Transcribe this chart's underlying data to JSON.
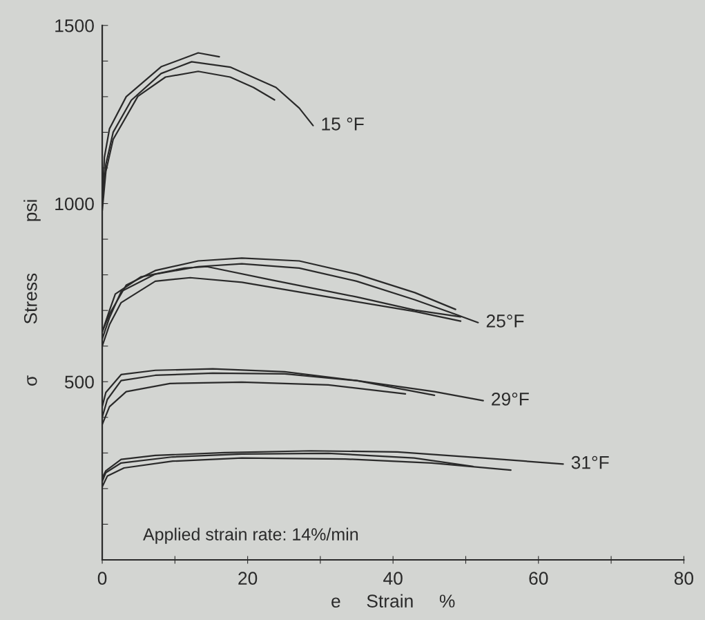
{
  "chart_data": {
    "type": "line",
    "xlabel": "e     Strain     %",
    "ylabel": "σ          Stress          psi",
    "xlim": [
      0,
      80
    ],
    "ylim": [
      0,
      1500
    ],
    "xticks": [
      0,
      {
        "value": 10,
        "label": null
      },
      20,
      {
        "value": 30,
        "label": null
      },
      40,
      {
        "value": 50,
        "label": null
      },
      60,
      {
        "value": 70,
        "label": null
      },
      80
    ],
    "yticks": [
      {
        "value": 0,
        "label": null
      },
      {
        "value": 100,
        "label": null
      },
      {
        "value": 200,
        "label": null
      },
      {
        "value": 300,
        "label": null
      },
      {
        "value": 400,
        "label": null
      },
      500,
      {
        "value": 600,
        "label": null
      },
      {
        "value": 700,
        "label": null
      },
      {
        "value": 800,
        "label": null
      },
      {
        "value": 900,
        "label": null
      },
      1000,
      {
        "value": 1100,
        "label": null
      },
      {
        "value": 1200,
        "label": null
      },
      {
        "value": 1300,
        "label": null
      },
      {
        "value": 1400,
        "label": null
      },
      1500
    ],
    "grid": false,
    "legend": false,
    "marker": "none",
    "line_style": "solid",
    "series": [
      {
        "color": "#2a2a2a",
        "x": [
          0,
          0.3,
          1,
          3.3,
          8.1,
          13.2,
          16.1
        ],
        "values": [
          1000,
          1130,
          1210,
          1300,
          1384,
          1423,
          1412
        ]
      },
      {
        "name": "15 °F",
        "color": "#2a2a2a",
        "x": [
          0,
          0.5,
          1.5,
          4,
          8.1,
          12.3,
          17.6,
          23.9,
          27.1,
          29.0
        ],
        "values": [
          1000,
          1110,
          1200,
          1290,
          1365,
          1398,
          1383,
          1326,
          1268,
          1219
        ]
      },
      {
        "color": "#2a2a2a",
        "x": [
          0,
          0.5,
          1.5,
          4.9,
          8.7,
          13.2,
          17.6,
          20.8,
          23.7
        ],
        "values": [
          980,
          1090,
          1180,
          1301,
          1355,
          1371,
          1355,
          1326,
          1291
        ]
      },
      {
        "color": "#2a2a2a",
        "x": [
          0,
          1,
          3.3,
          7.3,
          13.2,
          19.2,
          27.1,
          35,
          43,
          48.6
        ],
        "values": [
          640,
          690,
          771,
          812,
          839,
          847,
          839,
          802,
          750,
          703
        ]
      },
      {
        "name": "25°F",
        "color": "#2a2a2a",
        "x": [
          0,
          1,
          2.6,
          7.3,
          13.2,
          19.2,
          27.1,
          35,
          43,
          48.6,
          51.7
        ],
        "values": [
          620,
          680,
          753,
          802,
          823,
          831,
          819,
          782,
          730,
          689,
          666
        ]
      },
      {
        "color": "#2a2a2a",
        "x": [
          0,
          1,
          1.8,
          5.3,
          11.3,
          14.4,
          23.2,
          35,
          43,
          49.3
        ],
        "values": [
          640,
          700,
          746,
          794,
          819,
          823,
          786,
          738,
          701,
          682
        ]
      },
      {
        "color": "#2a2a2a",
        "x": [
          0,
          1,
          2.6,
          7.3,
          12.1,
          19.2,
          31.1,
          43,
          49.3
        ],
        "values": [
          600,
          660,
          722,
          782,
          792,
          779,
          738,
          697,
          670
        ]
      },
      {
        "color": "#2a2a2a",
        "x": [
          0,
          0.5,
          2.6,
          7.3,
          15.2,
          25.1,
          35,
          45.7
        ],
        "values": [
          430,
          470,
          520,
          532,
          536,
          528,
          503,
          462
        ]
      },
      {
        "name": "29°F",
        "color": "#2a2a2a",
        "x": [
          0,
          0.7,
          2.6,
          7.3,
          15.2,
          25.1,
          35,
          45.7,
          52.4
        ],
        "values": [
          400,
          450,
          503,
          518,
          524,
          522,
          503,
          472,
          447
        ]
      },
      {
        "color": "#2a2a2a",
        "x": [
          0,
          1,
          3.3,
          9.3,
          19.2,
          31.1,
          41.7
        ],
        "values": [
          380,
          430,
          472,
          495,
          499,
          491,
          466
        ]
      },
      {
        "name": "31°F",
        "color": "#2a2a2a",
        "x": [
          0,
          0.5,
          2.6,
          7.3,
          16.8,
          28.7,
          40.6,
          52.4,
          63.4
        ],
        "values": [
          230,
          250,
          282,
          293,
          301,
          306,
          303,
          286,
          269
        ]
      },
      {
        "color": "#2a2a2a",
        "x": [
          0,
          0.5,
          2.6,
          9.7,
          19.2,
          31.1,
          42.9,
          51.0
        ],
        "values": [
          220,
          245,
          272,
          289,
          297,
          299,
          286,
          262
        ]
      },
      {
        "color": "#2a2a2a",
        "x": [
          0,
          0.7,
          3,
          9.7,
          19.2,
          33.4,
          45.3,
          56.2
        ],
        "values": [
          205,
          235,
          258,
          277,
          286,
          283,
          272,
          252
        ]
      }
    ],
    "annotations": [
      "Applied strain rate: 14%/min"
    ]
  }
}
